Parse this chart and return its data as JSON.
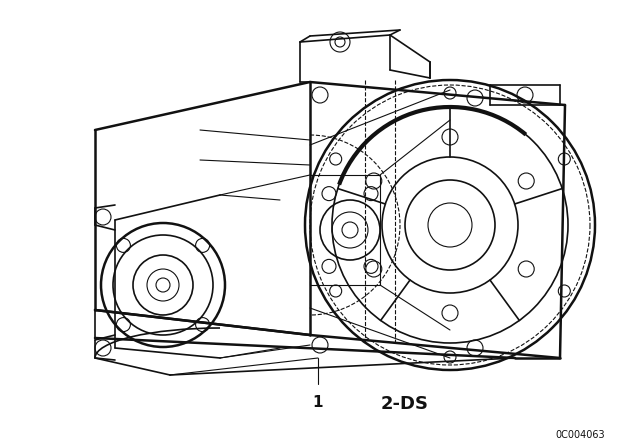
{
  "background_color": "#ffffff",
  "line_color": "#111111",
  "label_1": "1",
  "label_2": "2-DS",
  "part_number": "0C004063",
  "fig_width": 6.4,
  "fig_height": 4.48,
  "dpi": 100
}
